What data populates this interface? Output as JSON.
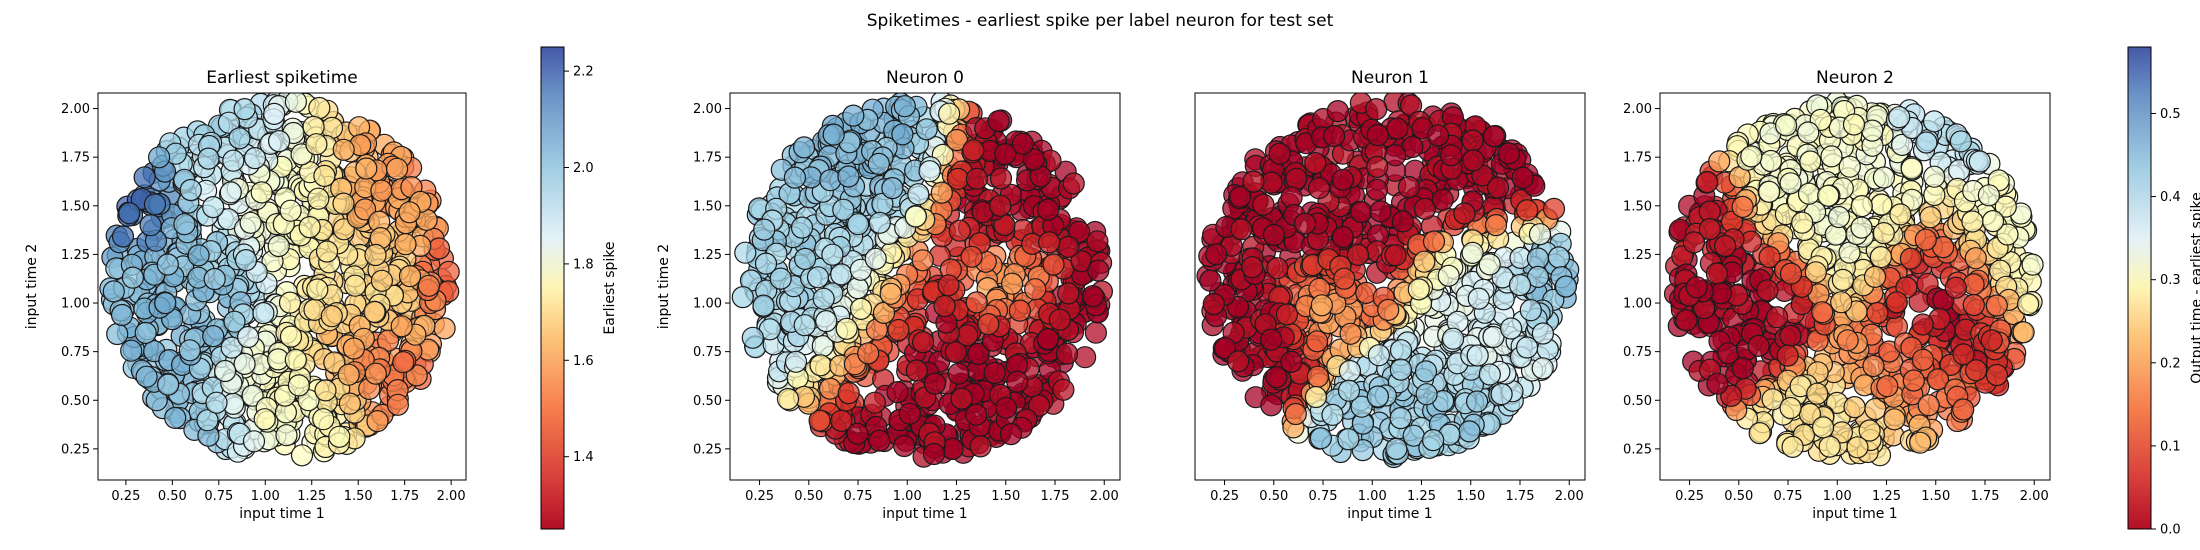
{
  "figure": {
    "suptitle": "Spiketimes - earliest spike per label neuron for test set"
  },
  "chart_data": [
    {
      "type": "scatter",
      "id": "earliest",
      "title": "Earliest spiketime",
      "xlabel": "input time 1",
      "ylabel": "input time 2",
      "xlim": [
        0.1,
        2.08
      ],
      "ylim": [
        0.09,
        2.08
      ],
      "xticks": [
        0.25,
        0.5,
        0.75,
        1.0,
        1.25,
        1.5,
        1.75,
        2.0
      ],
      "yticks": [
        0.25,
        0.5,
        0.75,
        1.0,
        1.25,
        1.5,
        1.75,
        2.0
      ],
      "colormap": "RdYlBu",
      "color_range": [
        1.25,
        2.25
      ],
      "colorbar": {
        "label": "Earliest spike",
        "ticks": [
          1.4,
          1.6,
          1.8,
          2.0,
          2.2
        ]
      },
      "disk": {
        "center": [
          1.08,
          1.12
        ],
        "radius": 0.92
      },
      "zones": [
        {
          "x": 0.3,
          "y": 1.45,
          "r": 0.18,
          "value": 2.22
        },
        {
          "x": 0.45,
          "y": 1.1,
          "r": 0.4,
          "value": 2.02
        },
        {
          "x": 0.85,
          "y": 1.85,
          "r": 0.2,
          "value": 1.98
        },
        {
          "x": 0.62,
          "y": 0.3,
          "r": 0.25,
          "value": 2.0
        },
        {
          "x": 1.1,
          "y": 1.6,
          "r": 0.35,
          "value": 1.78
        },
        {
          "x": 1.15,
          "y": 0.45,
          "r": 0.35,
          "value": 1.76
        },
        {
          "x": 1.55,
          "y": 1.1,
          "r": 0.35,
          "value": 1.68
        },
        {
          "x": 1.65,
          "y": 1.6,
          "r": 0.35,
          "value": 1.5
        },
        {
          "x": 1.6,
          "y": 0.7,
          "r": 0.3,
          "value": 1.45
        },
        {
          "x": 1.95,
          "y": 1.15,
          "r": 0.2,
          "value": 1.38
        }
      ]
    },
    {
      "type": "scatter",
      "id": "neuron0",
      "title": "Neuron 0",
      "xlabel": "input time 1",
      "ylabel": "input time 2",
      "xlim": [
        0.1,
        2.08
      ],
      "ylim": [
        0.09,
        2.08
      ],
      "xticks": [
        0.25,
        0.5,
        0.75,
        1.0,
        1.25,
        1.5,
        1.75,
        2.0
      ],
      "yticks": [
        0.25,
        0.5,
        0.75,
        1.0,
        1.25,
        1.5,
        1.75,
        2.0
      ],
      "colormap": "RdYlBu",
      "color_range": [
        0.0,
        0.58
      ],
      "disk": {
        "center": [
          1.08,
          1.12
        ],
        "radius": 0.92
      },
      "zones": [
        {
          "x": 0.45,
          "y": 1.1,
          "r": 0.45,
          "value": 0.42
        },
        {
          "x": 0.85,
          "y": 1.75,
          "r": 0.3,
          "value": 0.45
        },
        {
          "x": 1.5,
          "y": 1.1,
          "r": 0.22,
          "value": 0.22
        },
        {
          "x": 1.2,
          "y": 0.6,
          "r": 0.55,
          "value": 0.0
        },
        {
          "x": 1.55,
          "y": 1.55,
          "r": 0.35,
          "value": 0.0
        },
        {
          "x": 1.8,
          "y": 0.8,
          "r": 0.3,
          "value": 0.0
        }
      ]
    },
    {
      "type": "scatter",
      "id": "neuron1",
      "title": "Neuron 1",
      "xlabel": "input time 1",
      "ylabel": "",
      "xlim": [
        0.1,
        2.08
      ],
      "ylim": [
        0.09,
        2.08
      ],
      "xticks": [
        0.25,
        0.5,
        0.75,
        1.0,
        1.25,
        1.5,
        1.75,
        2.0
      ],
      "yticks": [],
      "colormap": "RdYlBu",
      "color_range": [
        0.0,
        0.58
      ],
      "disk": {
        "center": [
          1.08,
          1.12
        ],
        "radius": 0.92
      },
      "zones": [
        {
          "x": 0.75,
          "y": 1.0,
          "r": 0.2,
          "value": 0.18
        },
        {
          "x": 1.55,
          "y": 1.05,
          "r": 0.3,
          "value": 0.35
        },
        {
          "x": 1.2,
          "y": 0.4,
          "r": 0.3,
          "value": 0.42
        },
        {
          "x": 1.85,
          "y": 1.1,
          "r": 0.18,
          "value": 0.45
        },
        {
          "x": 0.8,
          "y": 1.6,
          "r": 0.5,
          "value": 0.0
        },
        {
          "x": 0.35,
          "y": 0.9,
          "r": 0.3,
          "value": 0.0
        },
        {
          "x": 1.5,
          "y": 1.7,
          "r": 0.3,
          "value": 0.0
        }
      ]
    },
    {
      "type": "scatter",
      "id": "neuron2",
      "title": "Neuron 2",
      "xlabel": "input time 1",
      "ylabel": "",
      "xlim": [
        0.1,
        2.08
      ],
      "ylim": [
        0.09,
        2.08
      ],
      "xticks": [
        0.25,
        0.5,
        0.75,
        1.0,
        1.25,
        1.5,
        1.75,
        2.0
      ],
      "yticks": [
        0.25,
        0.5,
        0.75,
        1.0,
        1.25,
        1.5,
        1.75,
        2.0
      ],
      "colormap": "RdYlBu",
      "color_range": [
        0.0,
        0.58
      ],
      "colorbar": {
        "label": "Output time - earliest spike",
        "ticks": [
          0.0,
          0.1,
          0.2,
          0.3,
          0.4,
          0.5
        ]
      },
      "disk": {
        "center": [
          1.08,
          1.12
        ],
        "radius": 0.92
      },
      "zones": [
        {
          "x": 0.55,
          "y": 1.05,
          "r": 0.28,
          "value": 0.0
        },
        {
          "x": 1.55,
          "y": 1.1,
          "r": 0.28,
          "value": 0.0
        },
        {
          "x": 0.3,
          "y": 1.45,
          "r": 0.18,
          "value": 0.02
        },
        {
          "x": 1.3,
          "y": 0.6,
          "r": 0.25,
          "value": 0.1
        },
        {
          "x": 1.05,
          "y": 1.55,
          "r": 0.4,
          "value": 0.3
        },
        {
          "x": 1.1,
          "y": 0.35,
          "r": 0.3,
          "value": 0.25
        },
        {
          "x": 1.85,
          "y": 1.3,
          "r": 0.3,
          "value": 0.3
        },
        {
          "x": 1.55,
          "y": 1.9,
          "r": 0.2,
          "value": 0.4
        }
      ]
    }
  ]
}
